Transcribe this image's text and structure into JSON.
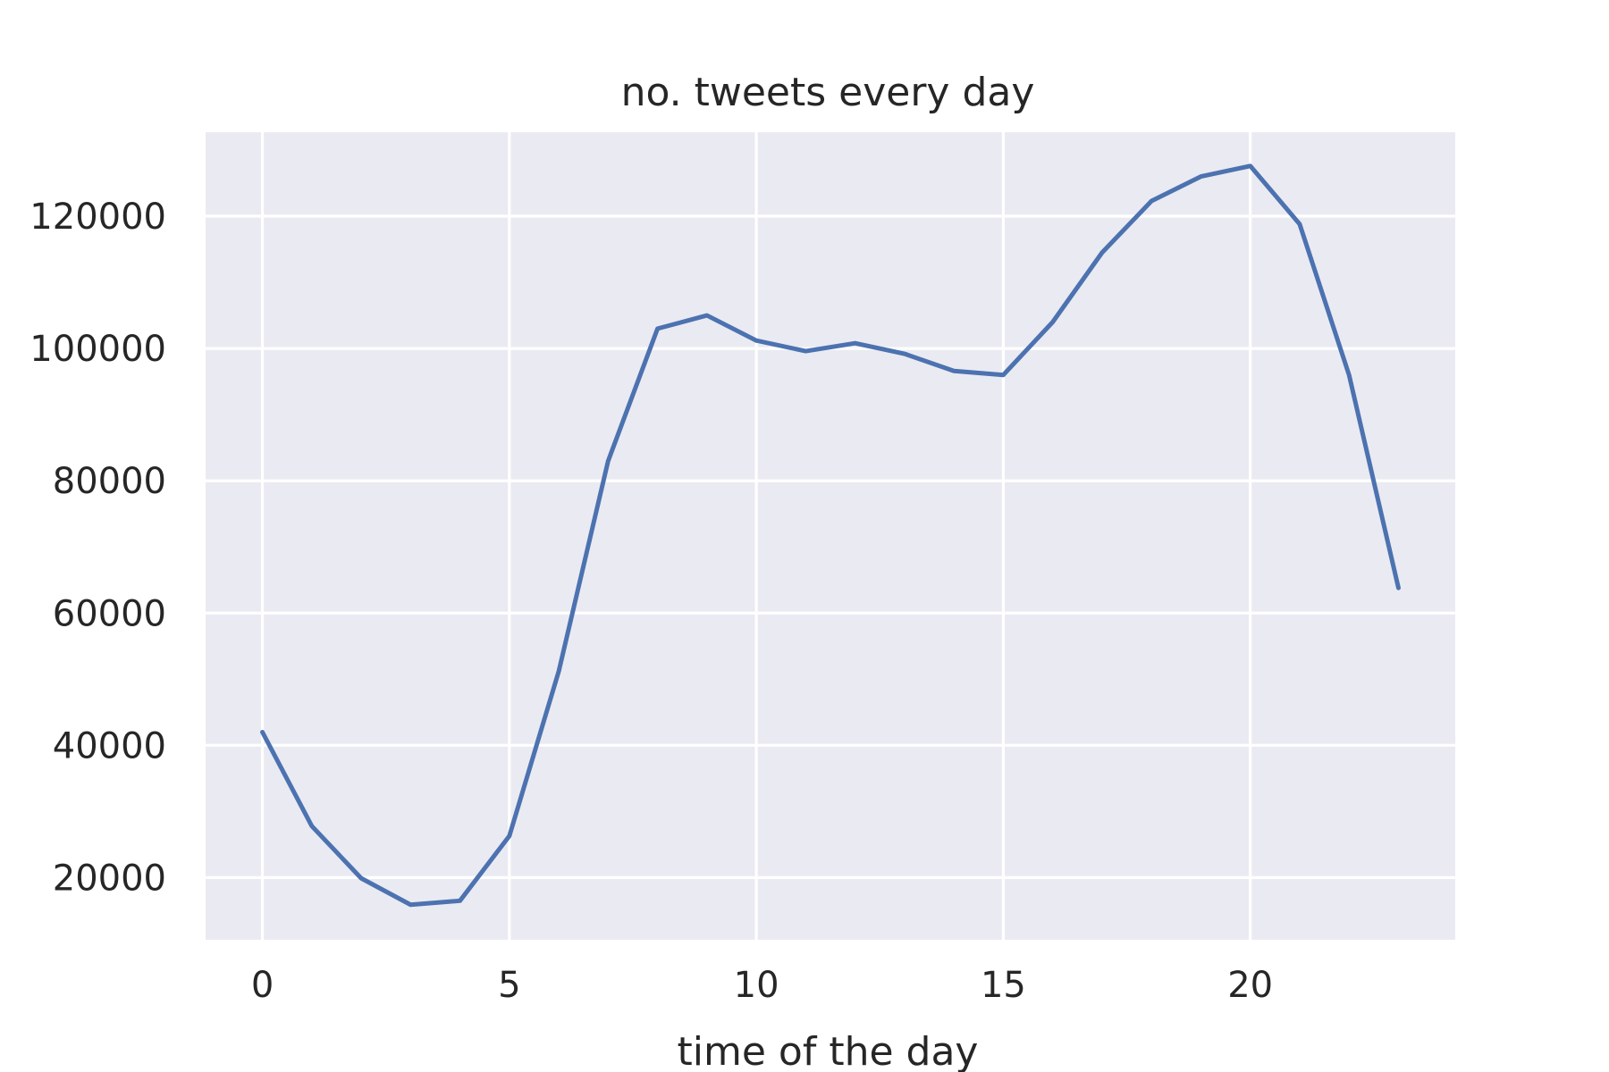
{
  "chart_data": {
    "type": "line",
    "title": "no. tweets every day",
    "xlabel": "time of the day",
    "ylabel": "",
    "x": [
      0,
      1,
      2,
      3,
      4,
      5,
      6,
      7,
      8,
      9,
      10,
      11,
      12,
      13,
      14,
      15,
      16,
      17,
      18,
      19,
      20,
      21,
      22,
      23
    ],
    "series": [
      {
        "name": "",
        "color": "#4c72b0",
        "values": [
          42000,
          27800,
          19900,
          15900,
          16500,
          26300,
          51200,
          83000,
          103000,
          105000,
          101200,
          99600,
          100800,
          99200,
          96600,
          96000,
          104000,
          114500,
          122300,
          126000,
          127600,
          118800,
          96000,
          63800
        ]
      }
    ],
    "xlim": [
      -1.15,
      24.15
    ],
    "ylim": [
      10600,
      132700
    ],
    "xticks": [
      0,
      5,
      10,
      15,
      20
    ],
    "yticks": [
      20000,
      40000,
      60000,
      80000,
      100000,
      120000
    ],
    "xtick_labels": [
      "0",
      "5",
      "10",
      "15",
      "20"
    ],
    "ytick_labels": [
      "20000",
      "40000",
      "60000",
      "80000",
      "100000",
      "120000"
    ],
    "grid": true,
    "background": "#eaeaf2",
    "grid_color": "#ffffff"
  }
}
